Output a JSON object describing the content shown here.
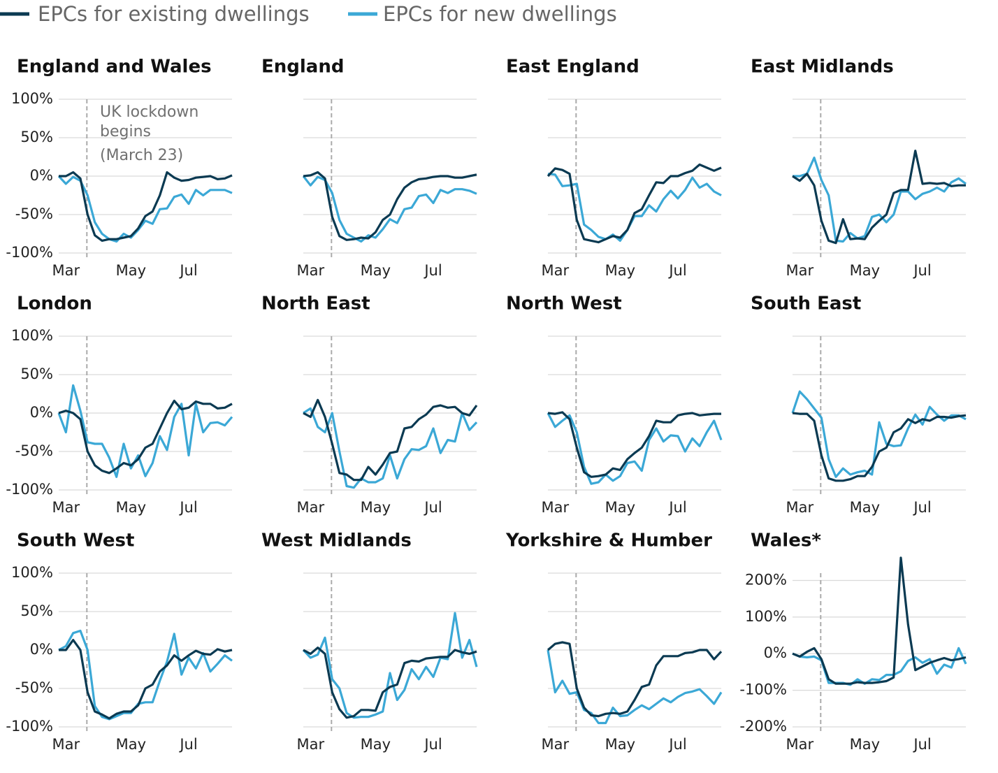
{
  "chart_data": {
    "type": "line",
    "series": [
      {
        "name": "EPCs for existing dwellings",
        "color": "#0b3a52"
      },
      {
        "name": "EPCs for new dwellings",
        "color": "#3ba8d6"
      }
    ],
    "categories": [
      null,
      "Mar",
      null,
      null,
      null,
      null,
      null,
      null,
      null,
      null,
      "May",
      null,
      null,
      null,
      null,
      null,
      null,
      null,
      "Jul",
      null,
      null,
      null,
      null,
      null,
      null
    ],
    "annotation": [
      "UK lockdown",
      "begins",
      "(March 23)"
    ],
    "panels": [
      {
        "title": "England and Wales",
        "ylim": [
          -100,
          100
        ],
        "yticks": [
          {
            "value": 100,
            "label": "100%"
          },
          {
            "value": 50,
            "label": "50%"
          },
          {
            "value": 0,
            "label": "0%"
          },
          {
            "value": -50,
            "label": "-50%"
          },
          {
            "value": -100,
            "label": "-100%"
          }
        ],
        "values": [
          [
            0,
            0,
            5,
            -3,
            -50,
            -77,
            -84,
            -82,
            -82,
            -80,
            -78,
            -68,
            -52,
            -46,
            -25,
            5,
            -2,
            -6,
            -5,
            -2,
            -1,
            0,
            -4,
            -3,
            1
          ],
          [
            0,
            -10,
            -1,
            -6,
            -25,
            -60,
            -75,
            -82,
            -85,
            -75,
            -80,
            -70,
            -58,
            -62,
            -43,
            -42,
            -27,
            -24,
            -36,
            -18,
            -25,
            -18,
            -18,
            -18,
            -22
          ]
        ]
      },
      {
        "title": "England",
        "ylim": [
          -100,
          100
        ],
        "yticks": [
          100,
          50,
          0,
          -50,
          -100
        ],
        "values": [
          [
            0,
            1,
            5,
            -3,
            -53,
            -78,
            -83,
            -82,
            -80,
            -81,
            -73,
            -57,
            -50,
            -30,
            -15,
            -8,
            -4,
            -3,
            -1,
            0,
            0,
            -2,
            -2,
            0,
            2
          ],
          [
            0,
            -12,
            -1,
            -5,
            -22,
            -57,
            -75,
            -80,
            -85,
            -77,
            -80,
            -69,
            -56,
            -61,
            -43,
            -41,
            -26,
            -24,
            -35,
            -18,
            -22,
            -17,
            -17,
            -19,
            -23
          ]
        ]
      },
      {
        "title": "East England",
        "ylim": [
          -100,
          100
        ],
        "yticks": [
          100,
          50,
          0,
          -50,
          -100
        ],
        "values": [
          [
            0,
            10,
            8,
            3,
            -57,
            -82,
            -84,
            -86,
            -82,
            -78,
            -80,
            -70,
            -48,
            -43,
            -25,
            -8,
            -9,
            0,
            0,
            4,
            7,
            15,
            11,
            7,
            11
          ],
          [
            3,
            2,
            -13,
            -12,
            -10,
            -63,
            -70,
            -79,
            -82,
            -76,
            -84,
            -70,
            -52,
            -52,
            -38,
            -46,
            -30,
            -19,
            -29,
            -18,
            -2,
            -15,
            -10,
            -20,
            -25
          ]
        ]
      },
      {
        "title": "East Midlands",
        "ylim": [
          -100,
          100
        ],
        "yticks": [
          100,
          50,
          0,
          -50,
          -100
        ],
        "values": [
          [
            0,
            -6,
            3,
            -12,
            -58,
            -84,
            -87,
            -56,
            -82,
            -81,
            -82,
            -67,
            -58,
            -50,
            -22,
            -18,
            -18,
            33,
            -10,
            -9,
            -10,
            -9,
            -13,
            -12,
            -12
          ],
          [
            0,
            0,
            3,
            24,
            -5,
            -25,
            -84,
            -85,
            -74,
            -81,
            -78,
            -53,
            -50,
            -60,
            -50,
            -20,
            -20,
            -30,
            -23,
            -20,
            -15,
            -20,
            -8,
            -3,
            -10
          ]
        ]
      },
      {
        "title": "London",
        "ylim": [
          -100,
          100
        ],
        "yticks": [
          {
            "value": 100,
            "label": "100%"
          },
          {
            "value": 50,
            "label": "50%"
          },
          {
            "value": 0,
            "label": "0%"
          },
          {
            "value": -50,
            "label": "-50%"
          },
          {
            "value": -100,
            "label": "-100%"
          }
        ],
        "values": [
          [
            0,
            3,
            0,
            -8,
            -50,
            -68,
            -75,
            -78,
            -72,
            -65,
            -68,
            -60,
            -45,
            -40,
            -20,
            0,
            16,
            5,
            7,
            15,
            12,
            12,
            6,
            7,
            12
          ],
          [
            0,
            -25,
            36,
            3,
            -38,
            -40,
            -40,
            -58,
            -83,
            -40,
            -72,
            -55,
            -82,
            -65,
            -30,
            -48,
            -5,
            12,
            -55,
            12,
            -25,
            -13,
            -12,
            -16,
            -5
          ]
        ]
      },
      {
        "title": "North East",
        "ylim": [
          -100,
          100
        ],
        "yticks": [
          100,
          50,
          0,
          -50,
          -100
        ],
        "values": [
          [
            0,
            -5,
            17,
            -5,
            -40,
            -78,
            -80,
            -87,
            -87,
            -70,
            -80,
            -67,
            -52,
            -50,
            -20,
            -18,
            -8,
            -2,
            8,
            10,
            7,
            8,
            0,
            -3,
            10
          ],
          [
            0,
            6,
            -18,
            -25,
            0,
            -50,
            -95,
            -97,
            -85,
            -90,
            -90,
            -85,
            -55,
            -85,
            -60,
            -47,
            -48,
            -43,
            -20,
            -52,
            -35,
            -37,
            0,
            -22,
            -12
          ]
        ]
      },
      {
        "title": "North West",
        "ylim": [
          -100,
          100
        ],
        "yticks": [
          100,
          50,
          0,
          -50,
          -100
        ],
        "values": [
          [
            0,
            -1,
            1,
            -8,
            -45,
            -77,
            -83,
            -82,
            -80,
            -72,
            -74,
            -60,
            -52,
            -45,
            -30,
            -10,
            -12,
            -12,
            -3,
            -1,
            0,
            -3,
            -2,
            -1,
            -1
          ],
          [
            0,
            -18,
            -10,
            -3,
            -25,
            -70,
            -92,
            -90,
            -80,
            -88,
            -82,
            -65,
            -63,
            -75,
            -35,
            -20,
            -37,
            -29,
            -30,
            -50,
            -33,
            -43,
            -25,
            -10,
            -35
          ]
        ]
      },
      {
        "title": "South East",
        "ylim": [
          -100,
          100
        ],
        "yticks": [
          100,
          50,
          0,
          -50,
          -100
        ],
        "values": [
          [
            0,
            -1,
            -1,
            -10,
            -55,
            -85,
            -88,
            -88,
            -86,
            -82,
            -82,
            -70,
            -50,
            -45,
            -25,
            -20,
            -8,
            -13,
            -8,
            -10,
            -5,
            -5,
            -6,
            -4,
            -3
          ],
          [
            0,
            28,
            18,
            6,
            -6,
            -60,
            -83,
            -72,
            -80,
            -77,
            -75,
            -80,
            -12,
            -40,
            -43,
            -42,
            -20,
            -2,
            -15,
            8,
            -2,
            -10,
            -3,
            -3,
            -8
          ]
        ]
      },
      {
        "title": "South West",
        "ylim": [
          -100,
          100
        ],
        "yticks": [
          {
            "value": 100,
            "label": "100%"
          },
          {
            "value": 50,
            "label": "50%"
          },
          {
            "value": 0,
            "label": "0%"
          },
          {
            "value": -50,
            "label": "-50%"
          },
          {
            "value": -100,
            "label": "-100%"
          }
        ],
        "values": [
          [
            0,
            0,
            13,
            0,
            -55,
            -80,
            -84,
            -89,
            -83,
            -80,
            -80,
            -72,
            -50,
            -45,
            -28,
            -20,
            -7,
            -14,
            -7,
            -1,
            -5,
            -6,
            1,
            -2,
            0
          ],
          [
            0,
            5,
            22,
            25,
            0,
            -73,
            -87,
            -90,
            -86,
            -82,
            -82,
            -70,
            -68,
            -68,
            -40,
            -15,
            21,
            -32,
            -10,
            -24,
            -4,
            -28,
            -18,
            -7,
            -14
          ]
        ]
      },
      {
        "title": "West Midlands",
        "ylim": [
          -100,
          100
        ],
        "yticks": [
          100,
          50,
          0,
          -50,
          -100
        ],
        "values": [
          [
            0,
            -5,
            3,
            -5,
            -55,
            -77,
            -88,
            -86,
            -78,
            -78,
            -79,
            -55,
            -48,
            -45,
            -17,
            -14,
            -15,
            -11,
            -10,
            -9,
            -9,
            0,
            -3,
            -5,
            -2
          ],
          [
            0,
            -10,
            -6,
            16,
            -38,
            -50,
            -82,
            -88,
            -87,
            -87,
            -84,
            -80,
            -30,
            -65,
            -52,
            -25,
            -38,
            -22,
            -35,
            -10,
            -12,
            48,
            -10,
            13,
            -22
          ]
        ]
      },
      {
        "title": "Yorkshire & Humber",
        "ylim": [
          -100,
          100
        ],
        "yticks": [
          100,
          50,
          0,
          -50,
          -100
        ],
        "values": [
          [
            0,
            8,
            10,
            8,
            -50,
            -75,
            -85,
            -86,
            -83,
            -82,
            -83,
            -80,
            -65,
            -48,
            -45,
            -20,
            -8,
            -8,
            -8,
            -4,
            -3,
            0,
            0,
            -12,
            -2
          ],
          [
            0,
            -55,
            -40,
            -57,
            -55,
            -78,
            -82,
            -95,
            -95,
            -75,
            -86,
            -85,
            -78,
            -72,
            -77,
            -70,
            -63,
            -68,
            -61,
            -56,
            -54,
            -51,
            -60,
            -70,
            -55
          ]
        ]
      },
      {
        "title": "Wales*",
        "ylim": [
          -200,
          220
        ],
        "yticks": [
          {
            "value": 200,
            "label": "200%"
          },
          {
            "value": 100,
            "label": "100%"
          },
          {
            "value": 0,
            "label": "0%"
          },
          {
            "value": -100,
            "label": "-100%"
          },
          {
            "value": -200,
            "label": "-200%"
          }
        ],
        "values": [
          [
            0,
            -8,
            5,
            15,
            -15,
            -70,
            -82,
            -82,
            -82,
            -78,
            -80,
            -80,
            -78,
            -75,
            -65,
            262,
            80,
            -45,
            -35,
            -25,
            -18,
            -12,
            -18,
            -15,
            -10
          ],
          [
            0,
            -8,
            -10,
            -8,
            -18,
            -80,
            -80,
            -80,
            -85,
            -70,
            -82,
            -70,
            -72,
            -58,
            -58,
            -48,
            -20,
            -10,
            -25,
            -15,
            -55,
            -30,
            -38,
            15,
            -28
          ]
        ]
      }
    ]
  }
}
